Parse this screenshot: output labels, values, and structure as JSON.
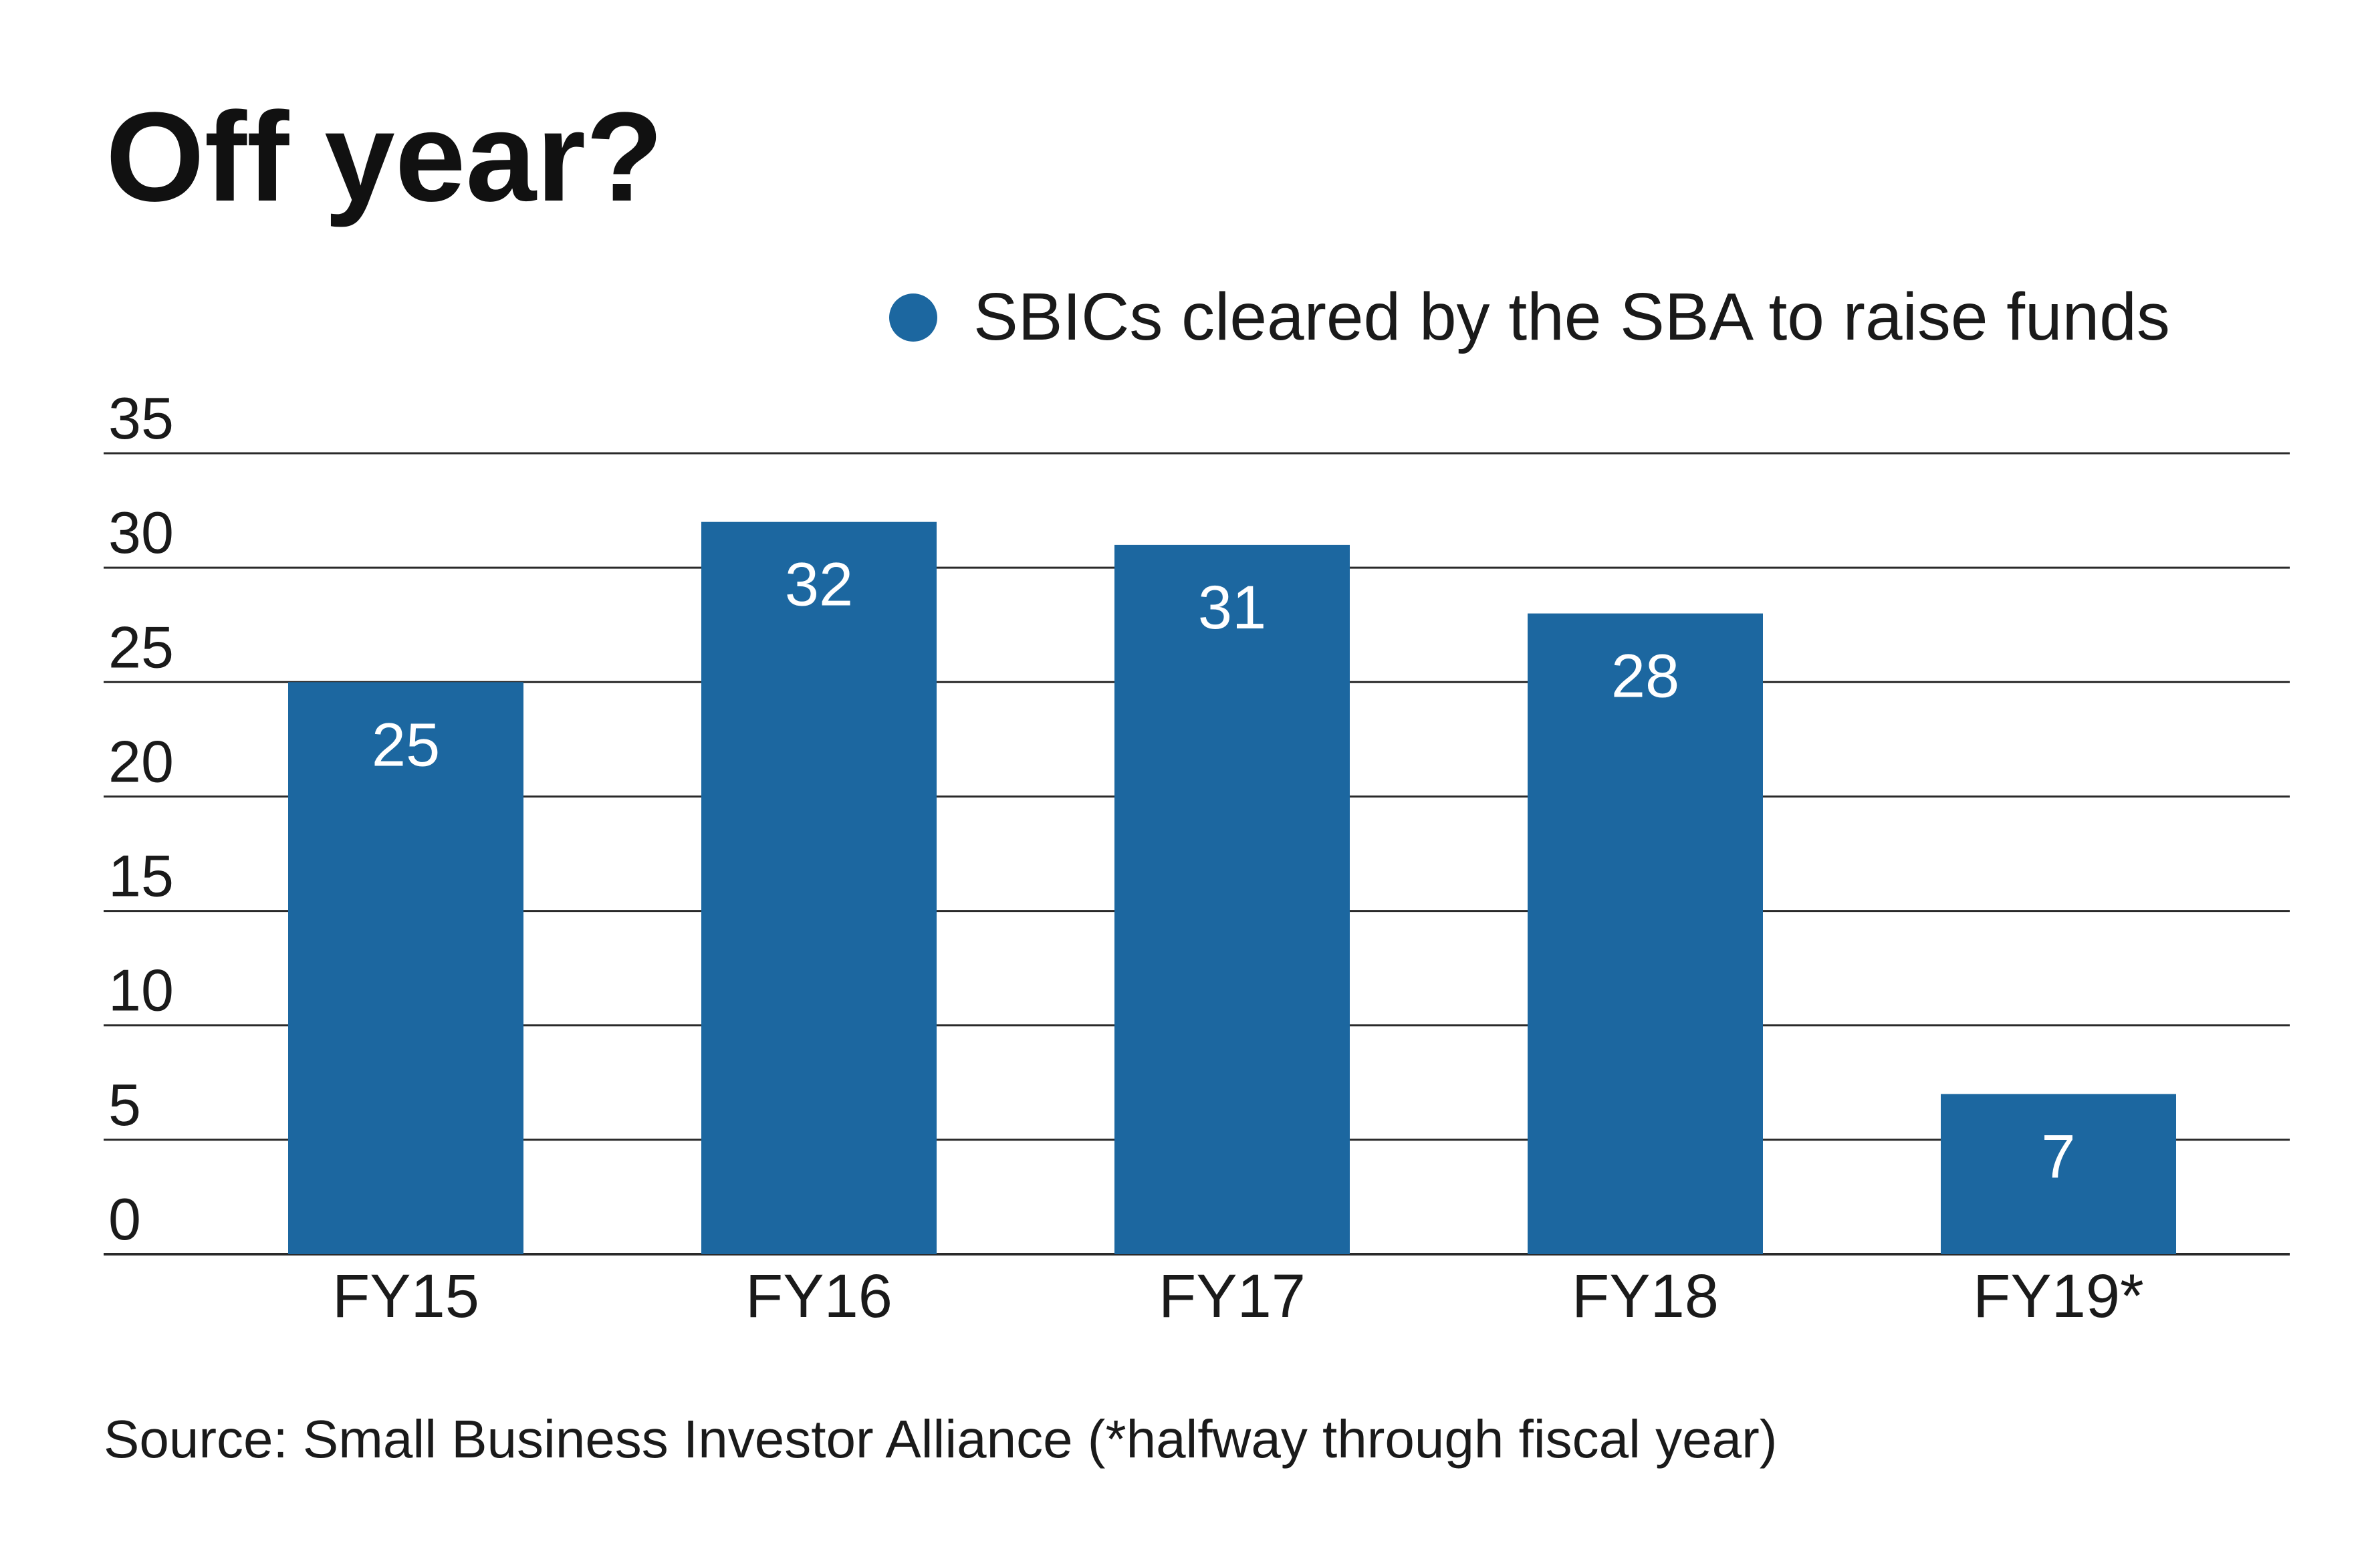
{
  "colors": {
    "bar": "#1c67a0",
    "text": "#1a1a1a",
    "grid": "#2a2a2a",
    "background": "#ffffff"
  },
  "chart_data": {
    "type": "bar",
    "title": "Off year?",
    "categories": [
      "FY15",
      "FY16",
      "FY17",
      "FY18",
      "FY19*"
    ],
    "series": [
      {
        "name": "SBICs cleared by the SBA to raise funds",
        "values": [
          25,
          32,
          31,
          28,
          7
        ],
        "labels": [
          "25",
          "32",
          "31",
          "28",
          "7"
        ]
      }
    ],
    "ylim": [
      0,
      35
    ],
    "yticks": [
      0,
      5,
      10,
      15,
      20,
      25,
      30,
      35
    ],
    "ytick_labels": [
      "0",
      "5",
      "10",
      "15",
      "20",
      "25",
      "30",
      "35"
    ],
    "grid": true,
    "legend_position": "top-right",
    "source": "Source: Small Business Investor Alliance (*halfway through fiscal year)"
  }
}
